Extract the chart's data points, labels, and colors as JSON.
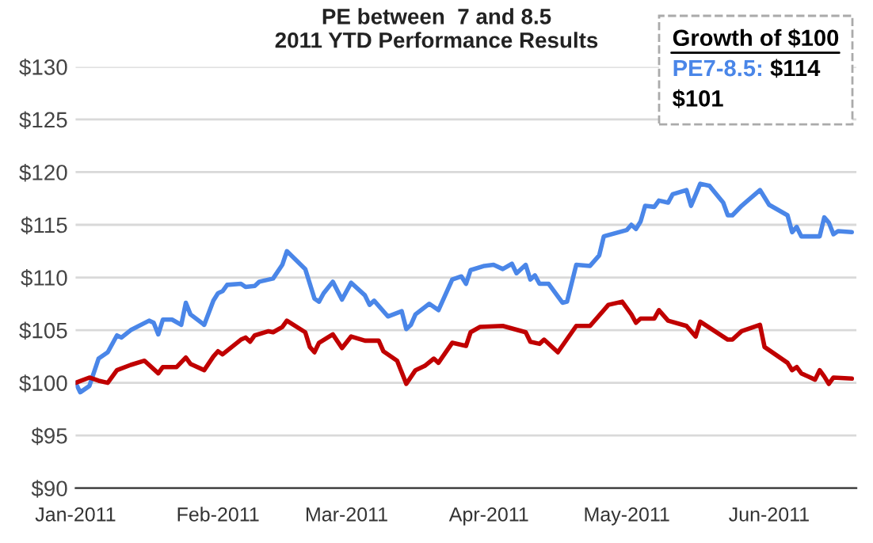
{
  "chart_data": {
    "type": "line",
    "title": "PE between  7 and 8.5\n2011 YTD Performance Results",
    "annotations": [
      "Growth of $100",
      "$114",
      "$101"
    ],
    "xlim": [
      "2011-01-01",
      "2011-06-20"
    ],
    "xticks": [
      {
        "value": "2011-01-01",
        "label": "Jan-2011"
      },
      {
        "value": "2011-02-01",
        "label": "Feb-2011"
      },
      {
        "value": "2011-03-01",
        "label": "Mar-2011"
      },
      {
        "value": "2011-04-01",
        "label": "Apr-2011"
      },
      {
        "value": "2011-05-01",
        "label": "May-2011"
      },
      {
        "value": "2011-06-01",
        "label": "Jun-2011"
      }
    ],
    "ylim": [
      90,
      130
    ],
    "yticks": [
      {
        "value": 90,
        "label": "$90"
      },
      {
        "value": 95,
        "label": "$95"
      },
      {
        "value": 100,
        "label": "$100"
      },
      {
        "value": 105,
        "label": "$105"
      },
      {
        "value": 110,
        "label": "$110"
      },
      {
        "value": 115,
        "label": "$115"
      },
      {
        "value": 120,
        "label": "$120"
      },
      {
        "value": 125,
        "label": "$125"
      },
      {
        "value": 130,
        "label": "$130"
      }
    ],
    "grid": "y",
    "legend": "top right",
    "marker": "none",
    "line_style": "solid",
    "series": [
      {
        "name": "PE7-8.5:",
        "color": "#4a86e8",
        "x": [
          "2011-01-01",
          "2011-01-02",
          "2011-01-04",
          "2011-01-06",
          "2011-01-08",
          "2011-01-10",
          "2011-01-11",
          "2011-01-13",
          "2011-01-17",
          "2011-01-18",
          "2011-01-19",
          "2011-01-20",
          "2011-01-22",
          "2011-01-24",
          "2011-01-25",
          "2011-01-26",
          "2011-01-29",
          "2011-01-31",
          "2011-02-01",
          "2011-02-02",
          "2011-02-03",
          "2011-02-06",
          "2011-02-07",
          "2011-02-09",
          "2011-02-10",
          "2011-02-13",
          "2011-02-15",
          "2011-02-16",
          "2011-02-20",
          "2011-02-22",
          "2011-02-23",
          "2011-02-24",
          "2011-02-26",
          "2011-02-28",
          "2011-03-02",
          "2011-03-05",
          "2011-03-06",
          "2011-03-07",
          "2011-03-10",
          "2011-03-13",
          "2011-03-14",
          "2011-03-15",
          "2011-03-16",
          "2011-03-19",
          "2011-03-21",
          "2011-03-24",
          "2011-03-26",
          "2011-03-27",
          "2011-03-28",
          "2011-03-31",
          "2011-04-02",
          "2011-04-04",
          "2011-04-06",
          "2011-04-07",
          "2011-04-09",
          "2011-04-10",
          "2011-04-11",
          "2011-04-12",
          "2011-04-14",
          "2011-04-17",
          "2011-04-18",
          "2011-04-20",
          "2011-04-23",
          "2011-04-25",
          "2011-04-26",
          "2011-05-01",
          "2011-05-02",
          "2011-05-03",
          "2011-05-04",
          "2011-05-05",
          "2011-05-07",
          "2011-05-08",
          "2011-05-10",
          "2011-05-11",
          "2011-05-14",
          "2011-05-15",
          "2011-05-17",
          "2011-05-19",
          "2011-05-22",
          "2011-05-23",
          "2011-05-24",
          "2011-05-26",
          "2011-05-30",
          "2011-06-01",
          "2011-06-05",
          "2011-06-06",
          "2011-06-07",
          "2011-06-08",
          "2011-06-12",
          "2011-06-13",
          "2011-06-14",
          "2011-06-15",
          "2011-06-16",
          "2011-06-19"
        ],
        "values": [
          100,
          99.1,
          99.7,
          102.3,
          102.9,
          104.5,
          104.3,
          105.0,
          105.9,
          105.7,
          104.6,
          106.0,
          106.0,
          105.5,
          107.6,
          106.5,
          105.5,
          107.8,
          108.5,
          108.7,
          109.3,
          109.4,
          109.1,
          109.2,
          109.6,
          109.9,
          111.2,
          112.5,
          110.8,
          108.0,
          107.7,
          108.5,
          109.6,
          107.9,
          109.5,
          108.3,
          107.4,
          107.8,
          106.3,
          106.8,
          105.1,
          105.5,
          106.5,
          107.5,
          106.9,
          109.8,
          110.1,
          109.4,
          110.7,
          111.1,
          111.2,
          110.8,
          111.3,
          110.4,
          111.2,
          109.8,
          110.2,
          109.4,
          109.4,
          107.6,
          107.7,
          111.2,
          111.1,
          112.1,
          113.9,
          114.5,
          115.0,
          114.6,
          115.3,
          116.8,
          116.7,
          117.3,
          117.1,
          117.9,
          118.3,
          116.8,
          118.9,
          118.7,
          117.1,
          115.9,
          115.9,
          116.8,
          118.3,
          116.9,
          115.9,
          114.3,
          114.8,
          113.9,
          113.9,
          115.7,
          115.2,
          114.1,
          114.4,
          114.3
        ]
      },
      {
        "color": "#c00000",
        "x": [
          "2011-01-01",
          "2011-01-04",
          "2011-01-06",
          "2011-01-08",
          "2011-01-10",
          "2011-01-13",
          "2011-01-16",
          "2011-01-19",
          "2011-01-20",
          "2011-01-23",
          "2011-01-25",
          "2011-01-26",
          "2011-01-29",
          "2011-01-31",
          "2011-02-01",
          "2011-02-02",
          "2011-02-06",
          "2011-02-07",
          "2011-02-08",
          "2011-02-09",
          "2011-02-12",
          "2011-02-13",
          "2011-02-15",
          "2011-02-16",
          "2011-02-20",
          "2011-02-21",
          "2011-02-22",
          "2011-02-23",
          "2011-02-26",
          "2011-02-28",
          "2011-03-02",
          "2011-03-05",
          "2011-03-08",
          "2011-03-09",
          "2011-03-12",
          "2011-03-14",
          "2011-03-16",
          "2011-03-18",
          "2011-03-20",
          "2011-03-21",
          "2011-03-24",
          "2011-03-27",
          "2011-03-28",
          "2011-03-30",
          "2011-04-04",
          "2011-04-09",
          "2011-04-10",
          "2011-04-12",
          "2011-04-13",
          "2011-04-16",
          "2011-04-20",
          "2011-04-23",
          "2011-04-27",
          "2011-04-30",
          "2011-05-02",
          "2011-05-03",
          "2011-05-04",
          "2011-05-07",
          "2011-05-08",
          "2011-05-10",
          "2011-05-14",
          "2011-05-16",
          "2011-05-17",
          "2011-05-23",
          "2011-05-24",
          "2011-05-26",
          "2011-05-30",
          "2011-05-31",
          "2011-06-05",
          "2011-06-06",
          "2011-06-07",
          "2011-06-08",
          "2011-06-11",
          "2011-06-12",
          "2011-06-13",
          "2011-06-14",
          "2011-06-15",
          "2011-06-19"
        ],
        "values": [
          100.0,
          100.5,
          100.2,
          100.0,
          101.2,
          101.7,
          102.1,
          100.9,
          101.5,
          101.5,
          102.4,
          101.8,
          101.2,
          102.5,
          103.0,
          102.7,
          104.1,
          104.3,
          103.9,
          104.5,
          104.9,
          104.8,
          105.3,
          105.9,
          104.8,
          103.4,
          102.9,
          103.8,
          104.6,
          103.3,
          104.4,
          104.0,
          104.0,
          103.0,
          102.1,
          99.9,
          101.2,
          101.6,
          102.3,
          101.9,
          103.8,
          103.5,
          104.8,
          105.3,
          105.4,
          104.8,
          103.9,
          103.7,
          104.1,
          102.9,
          105.4,
          105.4,
          107.4,
          107.7,
          106.5,
          105.7,
          106.1,
          106.1,
          106.9,
          105.9,
          105.4,
          104.4,
          105.8,
          104.1,
          104.1,
          104.9,
          105.5,
          103.4,
          101.9,
          101.2,
          101.5,
          100.9,
          100.3,
          101.2,
          100.6,
          99.9,
          100.5,
          100.4
        ]
      }
    ]
  }
}
